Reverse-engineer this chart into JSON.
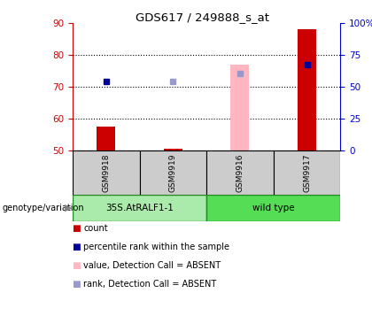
{
  "title": "GDS617 / 249888_s_at",
  "samples": [
    "GSM9918",
    "GSM9919",
    "GSM9916",
    "GSM9917"
  ],
  "ylim_left": [
    50,
    90
  ],
  "ylim_right": [
    0,
    100
  ],
  "yticks_left": [
    50,
    60,
    70,
    80,
    90
  ],
  "yticks_right": [
    0,
    25,
    50,
    75,
    100
  ],
  "ytick_labels_right": [
    "0",
    "25",
    "50",
    "75",
    "100%"
  ],
  "dotted_gridlines": [
    60,
    70,
    80
  ],
  "red_bars": {
    "GSM9918": [
      50,
      57.5
    ],
    "GSM9919": [
      50,
      50.5
    ],
    "GSM9916": null,
    "GSM9917": [
      50,
      88
    ]
  },
  "pink_bars": {
    "GSM9916": [
      50,
      77
    ]
  },
  "blue_squares": {
    "GSM9918": 71.5,
    "GSM9917": 77
  },
  "light_blue_squares": {
    "GSM9919": 71.5,
    "GSM9916": 74
  },
  "group_spans": [
    {
      "label": "35S.AtRALF1-1",
      "start": 0,
      "end": 2,
      "color": "#AAEAAA"
    },
    {
      "label": "wild type",
      "start": 2,
      "end": 4,
      "color": "#55DD55"
    }
  ],
  "group_border_color": "#228B22",
  "sample_bg_color": "#CCCCCC",
  "left_axis_color": "#CC0000",
  "right_axis_color": "#0000CC",
  "red_bar_color": "#CC0000",
  "pink_bar_color": "#FFB6C1",
  "blue_sq_color": "#000099",
  "light_blue_sq_color": "#9999CC",
  "legend_items": [
    {
      "label": "count",
      "color": "#CC0000"
    },
    {
      "label": "percentile rank within the sample",
      "color": "#000099"
    },
    {
      "label": "value, Detection Call = ABSENT",
      "color": "#FFB6C1"
    },
    {
      "label": "rank, Detection Call = ABSENT",
      "color": "#9999CC"
    }
  ],
  "genotype_label": "genotype/variation",
  "arrow": "▶"
}
